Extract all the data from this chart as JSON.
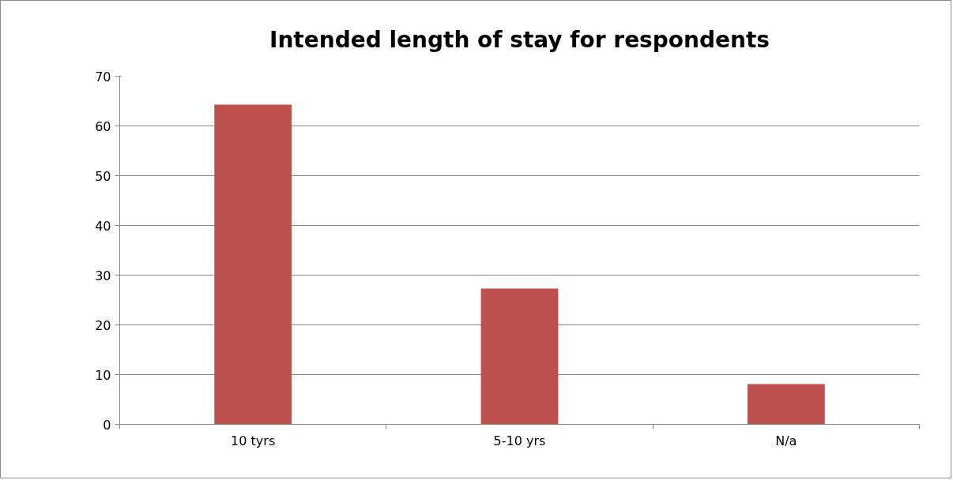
{
  "chart_data": {
    "type": "bar",
    "title": "Intended length of stay for respondents",
    "categories": [
      "10 tyrs",
      "5-10 yrs",
      "N/a"
    ],
    "values": [
      64.3,
      27.3,
      8.1
    ],
    "color": "#c0504d",
    "ylim": [
      0,
      70
    ],
    "yticks": [
      0,
      10,
      20,
      30,
      40,
      50,
      60,
      70
    ],
    "grid": "y"
  }
}
